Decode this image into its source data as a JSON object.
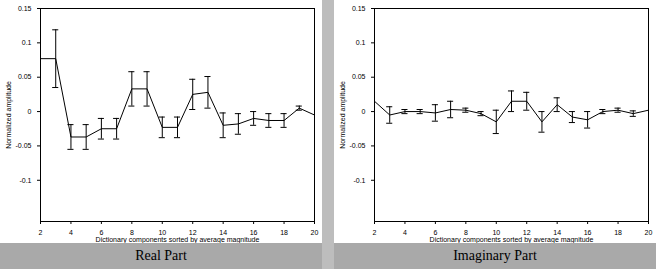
{
  "chart_data": [
    {
      "type": "line",
      "title": "Real Part",
      "x_label": "Dictionary components sorted by average magnitude",
      "y_label": "Normalized amplitude",
      "x": [
        2,
        3,
        4,
        5,
        6,
        7,
        8,
        9,
        10,
        11,
        12,
        13,
        14,
        15,
        16,
        17,
        18,
        19,
        20
      ],
      "values": [
        0.077,
        0.077,
        -0.037,
        -0.037,
        -0.025,
        -0.025,
        0.033,
        0.033,
        -0.023,
        -0.023,
        0.025,
        0.028,
        -0.02,
        -0.018,
        -0.01,
        -0.013,
        -0.013,
        0.005,
        -0.005
      ],
      "errors": [
        null,
        0.042,
        0.018,
        0.018,
        0.015,
        0.015,
        0.025,
        0.025,
        0.015,
        0.015,
        0.022,
        0.023,
        0.018,
        0.015,
        0.01,
        0.01,
        0.01,
        0.003,
        null
      ],
      "color": "#000000",
      "xlim": [
        2,
        20
      ],
      "ylim": [
        -0.16,
        0.15
      ],
      "xticks": [
        2,
        4,
        6,
        8,
        10,
        12,
        14,
        16,
        18,
        20
      ],
      "yticks": [
        -0.1,
        -0.05,
        0,
        0.05,
        0.1,
        0.15
      ]
    },
    {
      "type": "line",
      "title": "Imaginary Part",
      "x_label": "Dictionary components sorted by average magnitude",
      "y_label": "Normalized amplitude",
      "x": [
        2,
        3,
        4,
        5,
        6,
        7,
        8,
        9,
        10,
        11,
        12,
        13,
        14,
        15,
        16,
        17,
        18,
        19,
        20
      ],
      "values": [
        0.015,
        -0.005,
        0,
        0,
        -0.002,
        0.003,
        0.002,
        -0.003,
        -0.015,
        0.015,
        0.015,
        -0.015,
        0.01,
        -0.008,
        -0.012,
        0,
        0.002,
        -0.003,
        0.002
      ],
      "errors": [
        null,
        0.012,
        0.003,
        0.003,
        0.012,
        0.012,
        0.003,
        0.003,
        0.017,
        0.015,
        0.013,
        0.015,
        0.01,
        0.008,
        0.012,
        0.003,
        0.003,
        0.004,
        null
      ],
      "color": "#000000",
      "xlim": [
        2,
        20
      ],
      "ylim": [
        -0.16,
        0.15
      ],
      "xticks": [
        2,
        4,
        6,
        8,
        10,
        12,
        14,
        16,
        18,
        20
      ],
      "yticks": [
        -0.1,
        -0.05,
        0,
        0.05,
        0.1,
        0.15
      ]
    }
  ]
}
